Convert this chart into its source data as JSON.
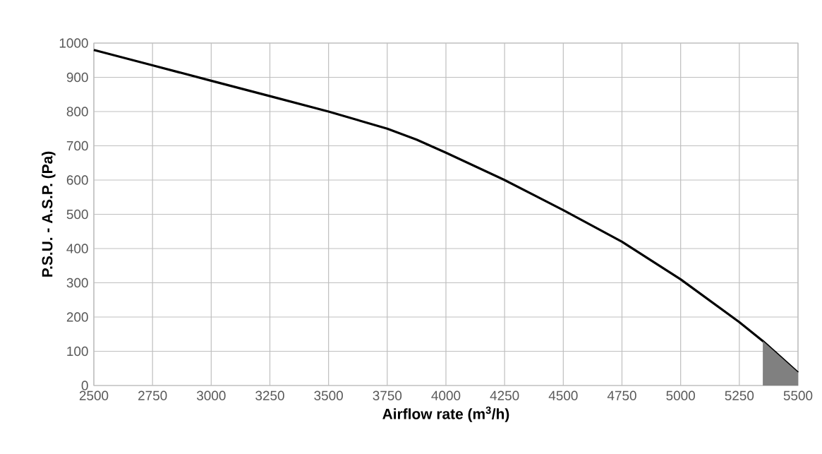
{
  "chart_data": {
    "type": "line",
    "xlabel": "Airflow rate (m$^{3}$/h)",
    "ylabel": "P.S.U. - A.S.P. (Pa)",
    "xlim": [
      2500,
      5500
    ],
    "ylim": [
      0,
      1000
    ],
    "xticks": [
      2500,
      2750,
      3000,
      3250,
      3500,
      3750,
      4000,
      4250,
      4500,
      4750,
      5000,
      5250,
      5500
    ],
    "yticks": [
      0,
      100,
      200,
      300,
      400,
      500,
      600,
      700,
      800,
      900,
      1000
    ],
    "grid": true,
    "series": [
      {
        "color": "#000000",
        "x": [
          2500,
          2750,
          3000,
          3250,
          3500,
          3750,
          3875,
          4000,
          4250,
          4500,
          4750,
          5000,
          5250,
          5350,
          5500
        ],
        "values": [
          980,
          935,
          890,
          845,
          800,
          750,
          718,
          680,
          600,
          512,
          420,
          310,
          185,
          130,
          38
        ]
      },
      {
        "type": "area",
        "color": "#808080",
        "x": [
          5350,
          5500
        ],
        "values": [
          130,
          38
        ]
      }
    ]
  }
}
